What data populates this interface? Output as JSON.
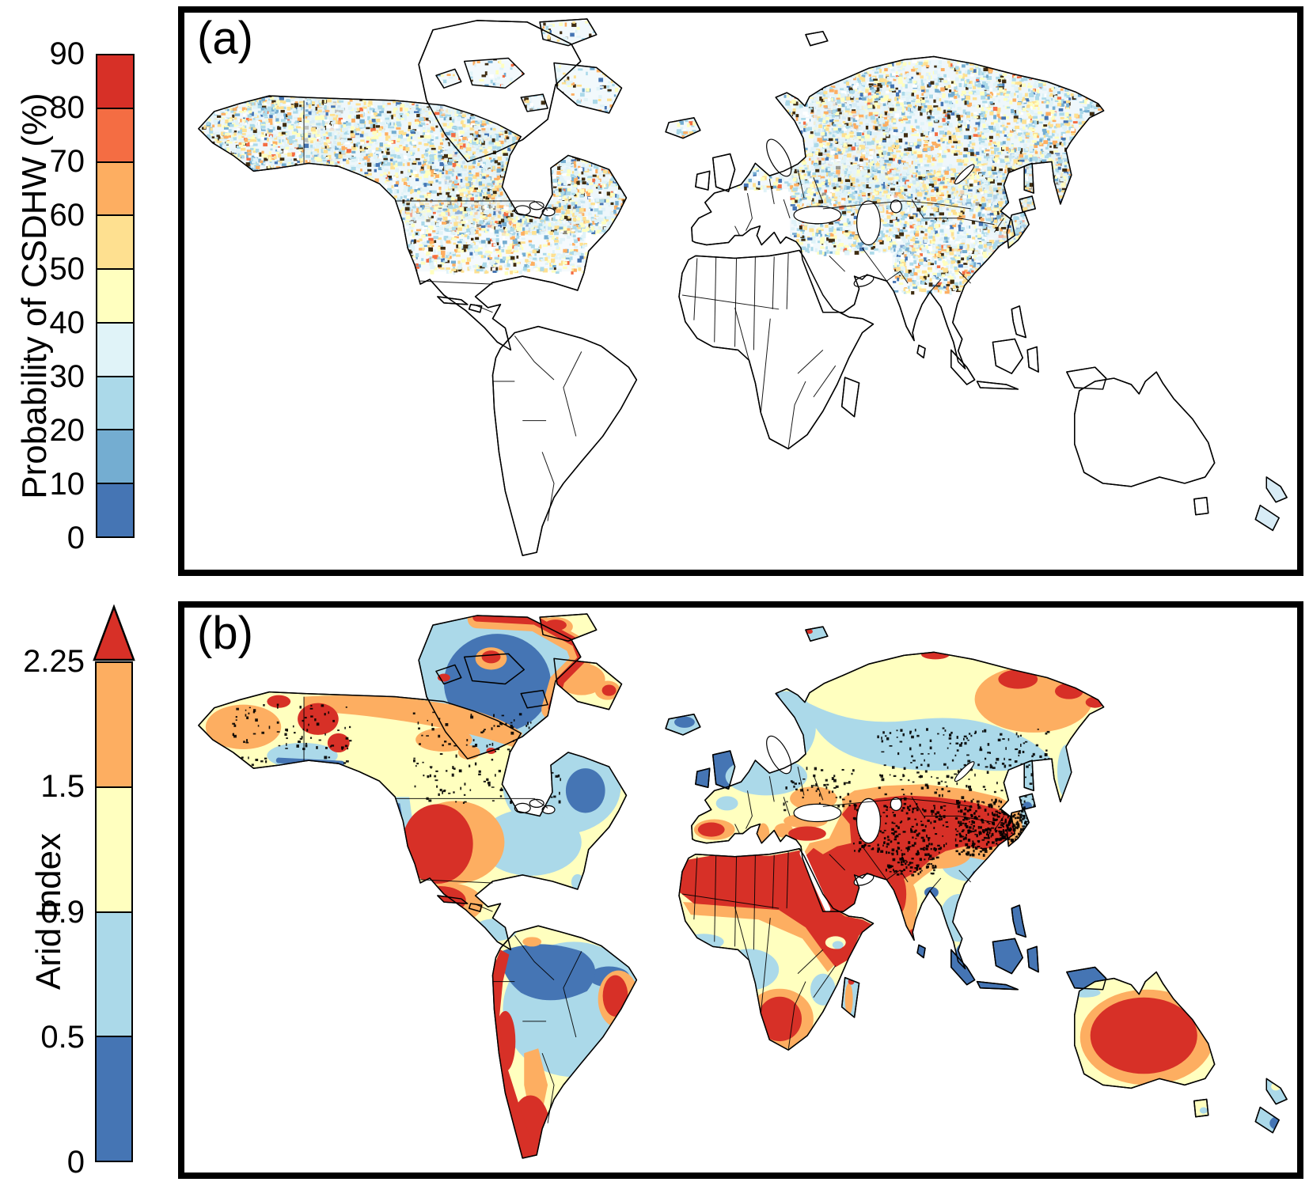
{
  "panels": [
    {
      "id": "a",
      "label": "(a)",
      "colorbar": {
        "title": "Probability of CSDHW (%)",
        "ticks": [
          "90",
          "80",
          "70",
          "60",
          "50",
          "40",
          "30",
          "20",
          "10",
          "0"
        ],
        "segment_colors_top_to_bottom": [
          "#d73027",
          "#f46d43",
          "#fdae61",
          "#fee090",
          "#ffffbf",
          "#e0f3f8",
          "#abd9e9",
          "#74add1",
          "#4575b4"
        ],
        "overflow_arrow": false
      }
    },
    {
      "id": "b",
      "label": "(b)",
      "colorbar": {
        "title": "Arid Index",
        "ticks": [
          "2.25",
          "1.5",
          "0.9",
          "0.5",
          "0"
        ],
        "segment_colors_top_to_bottom": [
          "#fdae61",
          "#ffffbf",
          "#abd9e9",
          "#4575b4"
        ],
        "overflow_arrow": true,
        "overflow_arrow_color": "#d73027"
      }
    }
  ],
  "palette": {
    "red": "#d73027",
    "orange_red": "#f46d43",
    "orange": "#fdae61",
    "light_orange": "#fee090",
    "pale_yellow": "#ffffbf",
    "pale_blue": "#e0f3f8",
    "light_blue": "#abd9e9",
    "mid_blue": "#74add1",
    "dark_blue": "#4575b4",
    "speckle_dark": "#3f2d12",
    "coastline": "#000000",
    "no_data_land": "#ffffff",
    "background": "#ffffff"
  }
}
